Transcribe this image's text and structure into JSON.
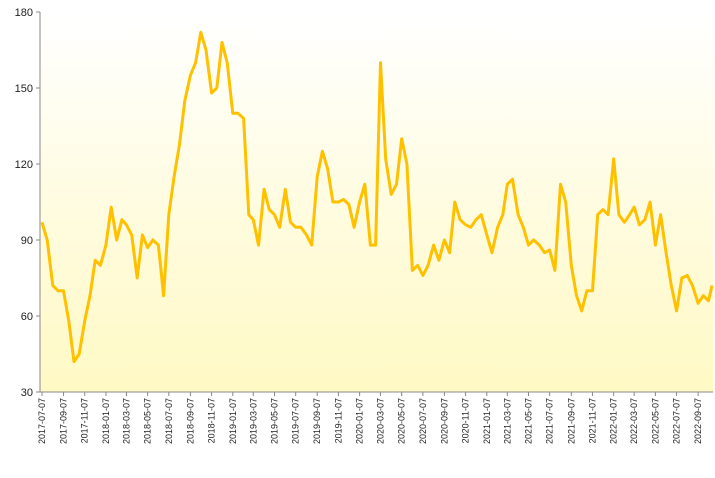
{
  "chart_data": {
    "type": "line",
    "x": [
      "2017-07-07",
      "2017-07-22",
      "2017-08-07",
      "2017-08-22",
      "2017-09-07",
      "2017-09-22",
      "2017-10-07",
      "2017-10-22",
      "2017-11-07",
      "2017-11-22",
      "2017-12-07",
      "2017-12-22",
      "2018-01-07",
      "2018-01-22",
      "2018-02-07",
      "2018-02-22",
      "2018-03-07",
      "2018-03-22",
      "2018-04-07",
      "2018-04-22",
      "2018-05-07",
      "2018-05-22",
      "2018-06-07",
      "2018-06-22",
      "2018-07-07",
      "2018-07-22",
      "2018-08-07",
      "2018-08-22",
      "2018-09-07",
      "2018-09-22",
      "2018-10-07",
      "2018-10-22",
      "2018-11-07",
      "2018-11-22",
      "2018-12-07",
      "2018-12-22",
      "2019-01-07",
      "2019-01-22",
      "2019-02-07",
      "2019-02-22",
      "2019-03-07",
      "2019-03-22",
      "2019-04-07",
      "2019-04-22",
      "2019-05-07",
      "2019-05-22",
      "2019-06-07",
      "2019-06-22",
      "2019-07-07",
      "2019-07-22",
      "2019-08-07",
      "2019-08-22",
      "2019-09-07",
      "2019-09-22",
      "2019-10-07",
      "2019-10-22",
      "2019-11-07",
      "2019-11-22",
      "2019-12-07",
      "2019-12-22",
      "2020-01-07",
      "2020-01-22",
      "2020-02-07",
      "2020-02-22",
      "2020-03-07",
      "2020-03-22",
      "2020-04-07",
      "2020-04-22",
      "2020-05-07",
      "2020-05-22",
      "2020-06-07",
      "2020-06-22",
      "2020-07-07",
      "2020-07-22",
      "2020-08-07",
      "2020-08-22",
      "2020-09-07",
      "2020-09-22",
      "2020-10-07",
      "2020-10-22",
      "2020-11-07",
      "2020-11-22",
      "2020-12-07",
      "2020-12-22",
      "2021-01-07",
      "2021-01-22",
      "2021-02-07",
      "2021-02-22",
      "2021-03-07",
      "2021-03-22",
      "2021-04-07",
      "2021-04-22",
      "2021-05-07",
      "2021-05-22",
      "2021-06-07",
      "2021-06-22",
      "2021-07-07",
      "2021-07-22",
      "2021-08-07",
      "2021-08-22",
      "2021-09-07",
      "2021-09-22",
      "2021-10-07",
      "2021-10-22",
      "2021-11-07",
      "2021-11-22",
      "2021-12-07",
      "2021-12-22",
      "2022-01-07",
      "2022-01-22",
      "2022-02-07",
      "2022-02-22",
      "2022-03-07",
      "2022-03-22",
      "2022-04-07",
      "2022-04-22",
      "2022-05-07",
      "2022-05-22",
      "2022-06-07",
      "2022-06-22",
      "2022-07-07",
      "2022-07-22",
      "2022-08-07",
      "2022-08-22",
      "2022-09-07",
      "2022-09-22",
      "2022-10-07",
      "2022-10-17"
    ],
    "series": [
      {
        "color": "#ffc000",
        "values": [
          97,
          90,
          72,
          70,
          70,
          58,
          42,
          45,
          58,
          68,
          82,
          80,
          88,
          103,
          90,
          98,
          96,
          92,
          75,
          92,
          87,
          90,
          88,
          68,
          100,
          115,
          128,
          145,
          155,
          160,
          172,
          165,
          148,
          150,
          168,
          160,
          140,
          140,
          138,
          100,
          98,
          88,
          110,
          102,
          100,
          95,
          110,
          97,
          95,
          95,
          92,
          88,
          115,
          125,
          118,
          105,
          105,
          106,
          104,
          95,
          105,
          112,
          88,
          88,
          160,
          122,
          108,
          112,
          130,
          120,
          78,
          80,
          76,
          80,
          88,
          82,
          90,
          85,
          105,
          98,
          96,
          95,
          98,
          100,
          92,
          85,
          95,
          100,
          112,
          114,
          100,
          95,
          88,
          90,
          88,
          85,
          86,
          78,
          112,
          105,
          80,
          68,
          62,
          70,
          70,
          100,
          102,
          100,
          122,
          100,
          97,
          100,
          103,
          96,
          98,
          105,
          88,
          100,
          85,
          72,
          62,
          75,
          76,
          72,
          65,
          68,
          66,
          72
        ]
      }
    ],
    "xlim": [
      "2017-07-07",
      "2022-10-17"
    ],
    "xticks": [
      "2017-07-07",
      "2017-09-07",
      "2017-11-07",
      "2018-01-07",
      "2018-03-07",
      "2018-05-07",
      "2018-07-07",
      "2018-09-07",
      "2018-11-07",
      "2019-01-07",
      "2019-03-07",
      "2019-05-07",
      "2019-07-07",
      "2019-09-07",
      "2019-11-07",
      "2020-01-07",
      "2020-03-07",
      "2020-05-07",
      "2020-07-07",
      "2020-09-07",
      "2020-11-07",
      "2021-01-07",
      "2021-03-07",
      "2021-05-07",
      "2021-07-07",
      "2021-09-07",
      "2021-11-07",
      "2022-01-07",
      "2022-03-07",
      "2022-05-07",
      "2022-07-07",
      "2022-09-07"
    ],
    "ylim": [
      30,
      180
    ],
    "yticks": [
      30,
      60,
      90,
      120,
      150,
      180
    ]
  }
}
